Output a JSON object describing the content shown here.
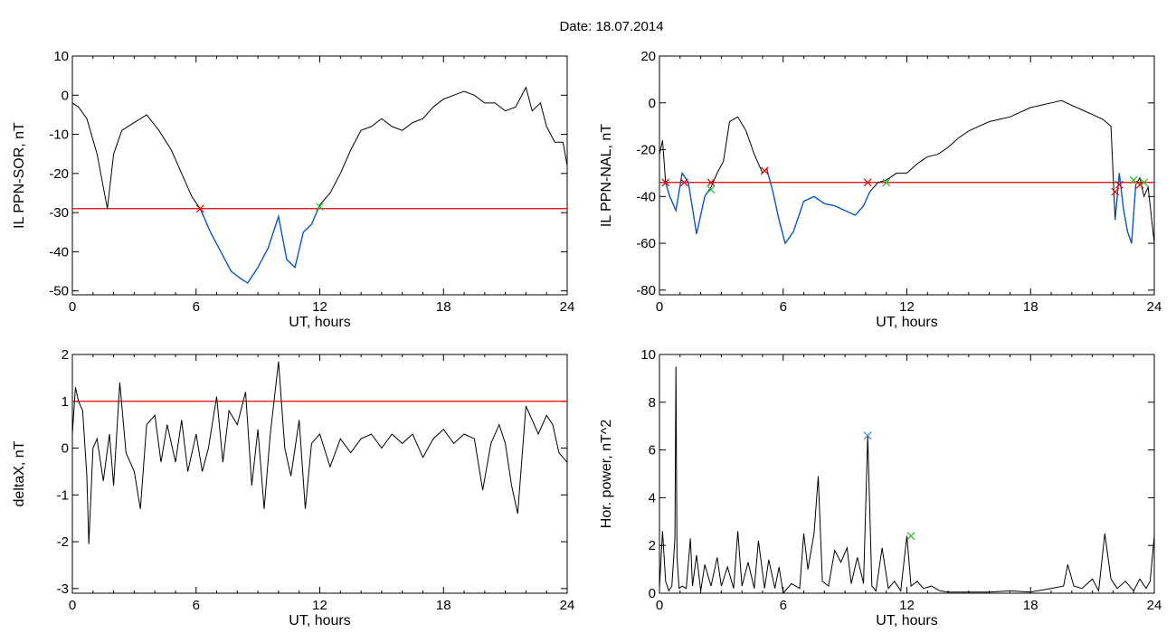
{
  "title": "Date:  18.07.2014",
  "colors": {
    "threshold": "#e60000",
    "highlight": "#0055cc",
    "start_marker": "#dd0000",
    "end_marker": "#22bb22",
    "peak_marker": "#3a7bd5",
    "trace": "#000000"
  },
  "chart_data": [
    {
      "type": "line",
      "panel": "top-left",
      "ylabel": "IL PPN-SOR, nT",
      "xlabel": "UT, hours",
      "xlim": [
        0,
        24
      ],
      "ylim": [
        -51,
        10
      ],
      "xticks": [
        "0",
        "6",
        "12",
        "18",
        "24"
      ],
      "yticks": [
        "10",
        "0",
        "-10",
        "-20",
        "-30",
        "-40",
        "-50"
      ],
      "threshold": -29,
      "series": [
        {
          "x": [
            0,
            0.3,
            0.7,
            1.2,
            1.7,
            2.0,
            2.4,
            3.0,
            3.6,
            4.2,
            4.8,
            5.3,
            5.8,
            6.2,
            6.7,
            7.2,
            7.7,
            8.2,
            8.5,
            9.0,
            9.5,
            10.0,
            10.4,
            10.8,
            11.2,
            11.6,
            12.0,
            12.5,
            13.0,
            13.5,
            14.0,
            14.5,
            15.0,
            15.5,
            16.0,
            16.5,
            17.0,
            17.5,
            18.0,
            18.5,
            19.0,
            19.5,
            20.0,
            20.5,
            21.0,
            21.5,
            22.0,
            22.3,
            22.7,
            23.0,
            23.4,
            23.8,
            24.0
          ],
          "y": [
            -2,
            -3,
            -6,
            -15,
            -29,
            -15,
            -9,
            -7,
            -5,
            -9,
            -14,
            -20,
            -26,
            -29,
            -35,
            -40,
            -45,
            -47,
            -48,
            -44,
            -39,
            -31,
            -42,
            -44,
            -35,
            -33,
            -28,
            -25,
            -20,
            -14,
            -9,
            -8,
            -6,
            -8,
            -9,
            -7,
            -6,
            -3,
            -1,
            0,
            1,
            0,
            -2,
            -2,
            -4,
            -3,
            2,
            -4,
            -2,
            -8,
            -12,
            -12,
            -18
          ]
        }
      ],
      "highlights": [
        {
          "x_from": 6.2,
          "x_to": 12.0
        }
      ],
      "markers": [
        {
          "x": 6.2,
          "y": -29,
          "kind": "start"
        },
        {
          "x": 12.0,
          "y": -28.5,
          "kind": "end"
        }
      ]
    },
    {
      "type": "line",
      "panel": "top-right",
      "ylabel": "IL PPN-NAL, nT",
      "xlabel": "UT, hours",
      "xlim": [
        0,
        24
      ],
      "ylim": [
        -82,
        20
      ],
      "xticks": [
        "0",
        "6",
        "12",
        "18",
        "24"
      ],
      "yticks": [
        "20",
        "0",
        "-20",
        "-40",
        "-60",
        "-80"
      ],
      "threshold": -34,
      "series": [
        {
          "x": [
            0,
            0.15,
            0.3,
            0.5,
            0.8,
            1.1,
            1.4,
            1.8,
            2.2,
            2.5,
            2.8,
            3.1,
            3.4,
            3.8,
            4.2,
            4.6,
            5.0,
            5.2,
            5.5,
            5.8,
            6.1,
            6.5,
            7.0,
            7.5,
            8.0,
            8.5,
            9.0,
            9.5,
            9.9,
            10.2,
            10.6,
            11.0,
            11.5,
            12.0,
            12.5,
            13.0,
            13.5,
            14.0,
            14.5,
            15.0,
            15.5,
            16.0,
            16.5,
            17.0,
            17.5,
            18.0,
            18.5,
            19.0,
            19.5,
            20.0,
            20.5,
            21.0,
            21.5,
            21.9,
            22.1,
            22.3,
            22.5,
            22.7,
            22.9,
            23.1,
            23.3,
            23.5,
            23.7,
            24.0
          ],
          "y": [
            -22,
            -16,
            -34,
            -40,
            -46,
            -30,
            -34,
            -56,
            -40,
            -36,
            -30,
            -25,
            -8,
            -6,
            -12,
            -22,
            -30,
            -28,
            -38,
            -50,
            -60,
            -55,
            -42,
            -40,
            -43,
            -44,
            -46,
            -48,
            -44,
            -38,
            -34,
            -33,
            -30,
            -30,
            -26,
            -23,
            -22,
            -19,
            -15,
            -12,
            -10,
            -8,
            -7,
            -6,
            -4,
            -2,
            -1,
            0,
            1,
            -1,
            -3,
            -5,
            -7,
            -10,
            -50,
            -30,
            -45,
            -55,
            -60,
            -35,
            -32,
            -40,
            -36,
            -60
          ]
        }
      ],
      "highlights": [
        {
          "x_from": 0.3,
          "x_to": 2.5
        },
        {
          "x_from": 5.2,
          "x_to": 10.2
        },
        {
          "x_from": 22.1,
          "x_to": 23.1
        }
      ],
      "markers": [
        {
          "x": 0.3,
          "y": -34,
          "kind": "start"
        },
        {
          "x": 1.2,
          "y": -34,
          "kind": "start"
        },
        {
          "x": 2.5,
          "y": -34,
          "kind": "start"
        },
        {
          "x": 2.5,
          "y": -37,
          "kind": "end"
        },
        {
          "x": 5.1,
          "y": -29,
          "kind": "start"
        },
        {
          "x": 10.1,
          "y": -34,
          "kind": "start"
        },
        {
          "x": 11.0,
          "y": -34,
          "kind": "end"
        },
        {
          "x": 22.1,
          "y": -38,
          "kind": "start"
        },
        {
          "x": 22.3,
          "y": -35,
          "kind": "start"
        },
        {
          "x": 23.0,
          "y": -33,
          "kind": "end"
        },
        {
          "x": 23.3,
          "y": -35,
          "kind": "start"
        },
        {
          "x": 23.5,
          "y": -34,
          "kind": "end"
        }
      ]
    },
    {
      "type": "line",
      "panel": "bottom-left",
      "ylabel": "deltaX, nT",
      "xlabel": "UT, hours",
      "xlim": [
        0,
        24
      ],
      "ylim": [
        -3.1,
        2
      ],
      "xticks": [
        "0",
        "6",
        "12",
        "18",
        "24"
      ],
      "yticks": [
        "2",
        "1",
        "0",
        "-1",
        "-2",
        "-3"
      ],
      "threshold": 1,
      "series": [
        {
          "x": [
            0,
            0.15,
            0.3,
            0.5,
            0.7,
            0.8,
            1.0,
            1.2,
            1.5,
            1.8,
            2.0,
            2.3,
            2.6,
            3.0,
            3.3,
            3.6,
            4.0,
            4.3,
            4.6,
            5.0,
            5.3,
            5.6,
            6.0,
            6.3,
            6.6,
            7.0,
            7.3,
            7.6,
            8.0,
            8.4,
            8.7,
            9.0,
            9.3,
            9.6,
            10.0,
            10.3,
            10.6,
            11.0,
            11.3,
            11.6,
            12.0,
            12.5,
            13.0,
            13.5,
            14.0,
            14.5,
            15.0,
            15.5,
            16.0,
            16.5,
            17.0,
            17.5,
            18.0,
            18.5,
            19.0,
            19.5,
            19.9,
            20.3,
            20.7,
            21.0,
            21.3,
            21.6,
            22.0,
            22.3,
            22.6,
            23.0,
            23.3,
            23.6,
            24.0
          ],
          "y": [
            0.3,
            1.3,
            1.0,
            0.8,
            -0.6,
            -2.05,
            0.0,
            0.2,
            -0.7,
            0.3,
            -0.8,
            1.4,
            -0.1,
            -0.5,
            -1.3,
            0.5,
            0.7,
            -0.3,
            0.5,
            -0.3,
            0.6,
            -0.5,
            0.3,
            -0.5,
            0.0,
            1.1,
            -0.3,
            0.8,
            0.5,
            1.2,
            -0.8,
            0.4,
            -1.3,
            0.3,
            1.85,
            0.0,
            -0.6,
            0.6,
            -1.3,
            0.1,
            0.3,
            -0.4,
            0.2,
            -0.1,
            0.2,
            0.3,
            0.0,
            0.3,
            0.1,
            0.3,
            -0.2,
            0.2,
            0.4,
            0.1,
            0.3,
            0.2,
            -0.9,
            0.1,
            0.5,
            0.1,
            -0.8,
            -1.4,
            0.9,
            0.6,
            0.3,
            0.7,
            0.5,
            -0.1,
            -0.3
          ]
        }
      ]
    },
    {
      "type": "line",
      "panel": "bottom-right",
      "ylabel": "Hor. power, nT^2",
      "xlabel": "UT, hours",
      "xlim": [
        0,
        24
      ],
      "ylim": [
        0,
        10
      ],
      "xticks": [
        "0",
        "6",
        "12",
        "18",
        "24"
      ],
      "yticks": [
        "10",
        "8",
        "6",
        "4",
        "2",
        "0"
      ],
      "series": [
        {
          "x": [
            0,
            0.15,
            0.3,
            0.45,
            0.6,
            0.75,
            0.8,
            0.85,
            0.95,
            1.1,
            1.3,
            1.5,
            1.6,
            1.8,
            2.0,
            2.2,
            2.5,
            2.8,
            3.0,
            3.3,
            3.6,
            3.8,
            4.0,
            4.3,
            4.6,
            4.8,
            5.1,
            5.3,
            5.6,
            5.8,
            6.0,
            6.4,
            6.8,
            7.0,
            7.2,
            7.5,
            7.7,
            7.9,
            8.2,
            8.5,
            8.8,
            9.1,
            9.3,
            9.6,
            9.9,
            10.1,
            10.3,
            10.5,
            10.8,
            11.1,
            11.4,
            11.7,
            12.0,
            12.2,
            12.5,
            12.8,
            13.2,
            13.6,
            14.0,
            15.0,
            16.0,
            17.0,
            18.0,
            19.0,
            19.6,
            19.8,
            20.1,
            20.5,
            21.0,
            21.3,
            21.6,
            21.9,
            22.2,
            22.6,
            23.0,
            23.3,
            23.6,
            23.8,
            24.0
          ],
          "y": [
            0.2,
            2.6,
            0.5,
            0.1,
            0.3,
            2.3,
            9.5,
            1.5,
            0.2,
            0.3,
            0.2,
            2.3,
            0.3,
            1.6,
            0.1,
            1.2,
            0.3,
            1.5,
            0.3,
            1.1,
            0.2,
            2.6,
            0.3,
            1.3,
            0.2,
            2.2,
            0.2,
            1.4,
            0.2,
            1.1,
            0.0,
            0.4,
            0.2,
            2.5,
            1.0,
            2.5,
            4.9,
            0.5,
            0.3,
            1.8,
            1.3,
            1.9,
            0.4,
            1.5,
            0.4,
            6.6,
            0.3,
            0.1,
            1.9,
            0.2,
            0.5,
            0.1,
            2.4,
            0.3,
            0.5,
            0.2,
            0.3,
            0.1,
            0.05,
            0.05,
            0.05,
            0.1,
            0.05,
            0.2,
            0.3,
            1.2,
            0.3,
            0.2,
            0.6,
            0.1,
            2.5,
            0.6,
            0.2,
            0.5,
            0.1,
            0.6,
            0.2,
            0.5,
            2.4
          ]
        }
      ],
      "markers": [
        {
          "x": 10.1,
          "y": 6.6,
          "kind": "peak"
        },
        {
          "x": 12.2,
          "y": 2.4,
          "kind": "end"
        }
      ]
    }
  ]
}
